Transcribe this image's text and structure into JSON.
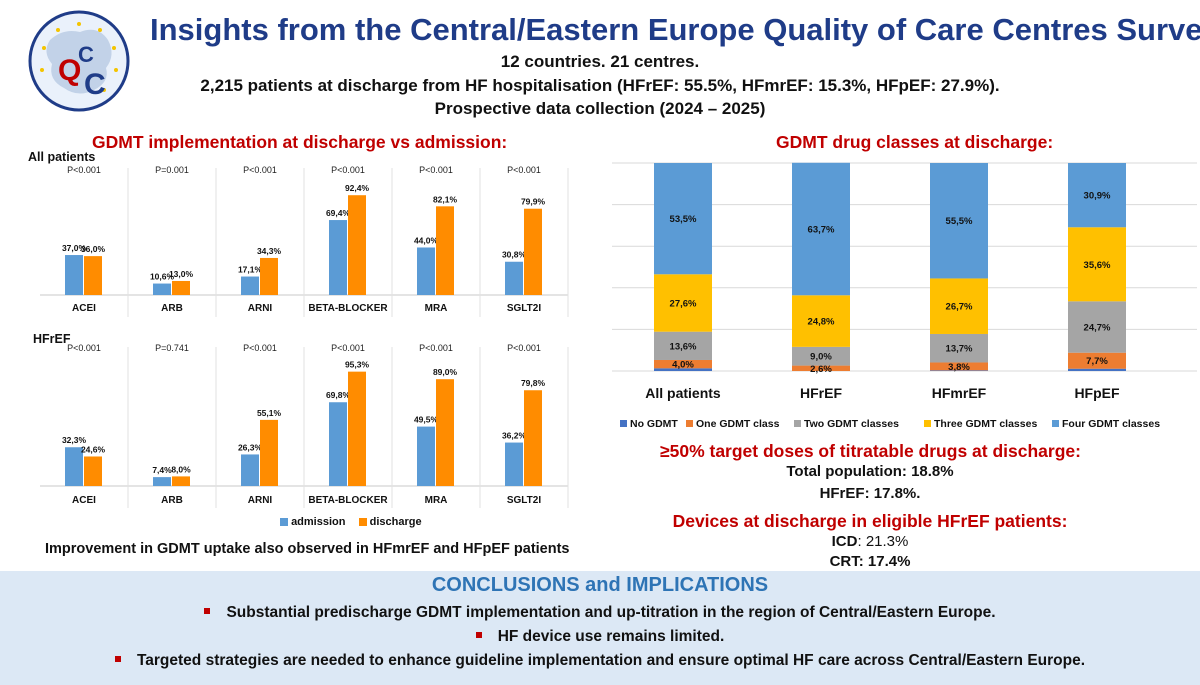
{
  "header": {
    "title": "Insights from the Central/Eastern Europe Quality of Care Centres Survey",
    "line1": "12 countries. 21 centres.",
    "line2": "2,215 patients at discharge from HF hospitalisation (HFrEF: 55.5%, HFmrEF: 15.3%, HFpEF: 27.9%).",
    "line3": "Prospective data collection (2024 – 2025)",
    "logo_text": "QCC"
  },
  "left_section": {
    "title": "GDMT implementation at discharge vs admission:",
    "footnote": "Improvement in GDMT uptake also observed in HFmrEF and HFpEF patients"
  },
  "right_section": {
    "title": "GDMT drug classes at discharge:"
  },
  "targets": {
    "title": "≥50% target doses of titratable drugs at discharge:",
    "line1": "Total population: 18.8%",
    "line2": "HFrEF: 17.8%."
  },
  "devices": {
    "title": "Devices at discharge in eligible HFrEF patients:",
    "icd_label": "ICD",
    "icd_value": ": 21.3%",
    "crt": "CRT: 17.4%"
  },
  "conclusions": {
    "title": "CONCLUSIONS and IMPLICATIONS",
    "bullets": [
      "Substantial predischarge GDMT implementation and up-titration in the region of Central/Eastern Europe.",
      "HF device use remains limited.",
      "Targeted strategies are needed to enhance guideline implementation and ensure optimal HF care across Central/Eastern Europe."
    ]
  },
  "chart_data": [
    {
      "type": "bar",
      "panel_label": "All patients",
      "categories": [
        "ACEI",
        "ARB",
        "ARNI",
        "BETA-BLOCKER",
        "MRA",
        "SGLT2I"
      ],
      "p_values": [
        "P<0.001",
        "P=0.001",
        "P<0.001",
        "P<0.001",
        "P<0.001",
        "P<0.001"
      ],
      "series": [
        {
          "name": "admission",
          "color": "#5b9bd5",
          "values": [
            37.0,
            10.6,
            17.1,
            69.4,
            44.0,
            30.8
          ],
          "labels": [
            "37,0%",
            "10,6%",
            "17,1%",
            "69,4%",
            "44,0%",
            "30,8%"
          ]
        },
        {
          "name": "discharge",
          "color": "#ff8c00",
          "values": [
            36.0,
            13.0,
            34.3,
            92.4,
            82.1,
            79.9
          ],
          "labels": [
            "36,0%",
            "13,0%",
            "34,3%",
            "92,4%",
            "82,1%",
            "79,9%"
          ]
        }
      ],
      "ylim": [
        0,
        100
      ]
    },
    {
      "type": "bar",
      "panel_label": "HFrEF",
      "categories": [
        "ACEI",
        "ARB",
        "ARNI",
        "BETA-BLOCKER",
        "MRA",
        "SGLT2I"
      ],
      "p_values": [
        "P<0.001",
        "P=0.741",
        "P<0.001",
        "P<0.001",
        "P<0.001",
        "P<0.001"
      ],
      "series": [
        {
          "name": "admission",
          "color": "#5b9bd5",
          "values": [
            32.3,
            7.4,
            26.3,
            69.8,
            49.5,
            36.2
          ],
          "labels": [
            "32,3%",
            "7,4%",
            "26,3%",
            "69,8%",
            "49,5%",
            "36,2%"
          ]
        },
        {
          "name": "discharge",
          "color": "#ff8c00",
          "values": [
            24.6,
            8.0,
            55.1,
            95.3,
            89.0,
            79.8
          ],
          "labels": [
            "24,6%",
            "8,0%",
            "55,1%",
            "95,3%",
            "89,0%",
            "79,8%"
          ]
        }
      ],
      "ylim": [
        0,
        100
      ],
      "legend": [
        "admission",
        "discharge"
      ]
    },
    {
      "type": "bar",
      "stacked": true,
      "categories": [
        "All patients",
        "HFrEF",
        "HFmrEF",
        "HFpEF"
      ],
      "series": [
        {
          "name": "No GDMT",
          "color": "#4472c4",
          "values": [
            1.3,
            0.0,
            0.3,
            1.1
          ],
          "labels": [
            "",
            "",
            "",
            ""
          ]
        },
        {
          "name": "One GDMT class",
          "color": "#ed7d31",
          "values": [
            4.0,
            2.6,
            3.8,
            7.7
          ],
          "labels": [
            "4,0%",
            "2,6%",
            "3,8%",
            "7,7%"
          ]
        },
        {
          "name": "Two GDMT classes",
          "color": "#a5a5a5",
          "values": [
            13.6,
            9.0,
            13.7,
            24.7
          ],
          "labels": [
            "13,6%",
            "9,0%",
            "13,7%",
            "24,7%"
          ]
        },
        {
          "name": "Three GDMT classes",
          "color": "#ffc000",
          "values": [
            27.6,
            24.8,
            26.7,
            35.6
          ],
          "labels": [
            "27,6%",
            "24,8%",
            "26,7%",
            "35,6%"
          ]
        },
        {
          "name": "Four GDMT classes",
          "color": "#5b9bd5",
          "values": [
            53.5,
            63.7,
            55.5,
            30.9
          ],
          "labels": [
            "53,5%",
            "63,7%",
            "55,5%",
            "30,9%"
          ]
        }
      ],
      "ylim": [
        0,
        100
      ],
      "legend": "bottom",
      "grid": true
    }
  ]
}
